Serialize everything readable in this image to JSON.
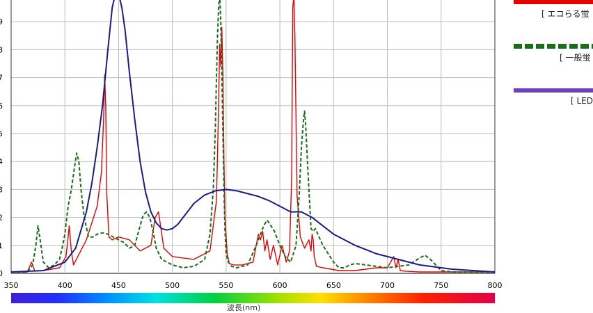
{
  "chart_data": {
    "type": "line",
    "xlabel": "波長(nm)",
    "xlim": [
      350,
      800
    ],
    "ylim": [
      0,
      1
    ],
    "x_ticks": [
      350,
      400,
      450,
      500,
      550,
      600,
      650,
      700,
      750,
      800
    ],
    "y_ticks": [
      {
        "v": 0,
        "label": "0"
      },
      {
        "v": 0.1,
        "label": "1"
      },
      {
        "v": 0.2,
        "label": "2"
      },
      {
        "v": 0.3,
        "label": "3"
      },
      {
        "v": 0.4,
        "label": "4"
      },
      {
        "v": 0.5,
        "label": "5"
      },
      {
        "v": 0.6,
        "label": "6"
      },
      {
        "v": 0.7,
        "label": "7"
      },
      {
        "v": 0.8,
        "label": "8"
      },
      {
        "v": 0.9,
        "label": "9"
      }
    ],
    "grid": true,
    "spectrum_bar": true,
    "series": [
      {
        "name": "[ エコらる蛍",
        "color": "#e60000",
        "style": "solid",
        "x": [
          350,
          365,
          369,
          372,
          380,
          395,
          401,
          403,
          404,
          406,
          408,
          420,
          430,
          434,
          436,
          437,
          438,
          439,
          441,
          444,
          450,
          460,
          470,
          480,
          484,
          487,
          489,
          492,
          500,
          510,
          520,
          535,
          541,
          543,
          544,
          545,
          546,
          547,
          548,
          549,
          551,
          553,
          557,
          565,
          575,
          580,
          582,
          584,
          586,
          588,
          591,
          594,
          598,
          602,
          606,
          609,
          611,
          612,
          613,
          614,
          616,
          619,
          623,
          627,
          629,
          630,
          631,
          632,
          634,
          640,
          655,
          670,
          690,
          700,
          706,
          708,
          710,
          712,
          716,
          730,
          760,
          800
        ],
        "y": [
          0.005,
          0.005,
          0.04,
          0.008,
          0.01,
          0.02,
          0.06,
          0.13,
          0.17,
          0.08,
          0.03,
          0.12,
          0.24,
          0.36,
          0.55,
          0.71,
          0.6,
          0.28,
          0.13,
          0.12,
          0.13,
          0.12,
          0.08,
          0.1,
          0.2,
          0.22,
          0.17,
          0.09,
          0.06,
          0.055,
          0.05,
          0.08,
          0.26,
          0.6,
          0.82,
          0.74,
          0.88,
          0.7,
          0.4,
          0.2,
          0.07,
          0.035,
          0.03,
          0.03,
          0.04,
          0.14,
          0.12,
          0.15,
          0.08,
          0.12,
          0.05,
          0.1,
          0.03,
          0.1,
          0.04,
          0.08,
          0.35,
          0.95,
          0.99,
          0.85,
          0.28,
          0.13,
          0.09,
          0.12,
          0.08,
          0.14,
          0.12,
          0.06,
          0.025,
          0.02,
          0.01,
          0.01,
          0.02,
          0.02,
          0.06,
          0.02,
          0.05,
          0.01,
          0.008,
          0.005,
          0.005,
          0.005
        ]
      },
      {
        "name": "[ 一般蛍",
        "color": "#1a6b1a",
        "style": "dashed",
        "x": [
          350,
          365,
          370,
          373,
          375,
          377,
          380,
          385,
          390,
          395,
          398,
          400,
          403,
          406,
          409,
          411,
          413,
          415,
          418,
          422,
          426,
          430,
          435,
          440,
          445,
          450,
          455,
          460,
          465,
          470,
          473,
          476,
          479,
          482,
          485,
          490,
          500,
          510,
          520,
          530,
          535,
          538,
          540,
          541,
          542,
          543,
          544,
          545,
          546,
          547,
          548,
          549,
          550,
          552,
          555,
          560,
          570,
          578,
          585,
          588,
          590,
          595,
          600,
          605,
          610,
          615,
          618,
          620,
          622,
          623,
          624,
          625,
          627,
          629,
          631,
          633,
          640,
          650,
          655,
          660,
          665,
          670,
          680,
          690,
          700,
          710,
          720,
          730,
          735,
          740,
          745,
          750,
          760,
          800
        ],
        "y": [
          0.005,
          0.005,
          0.03,
          0.1,
          0.17,
          0.12,
          0.04,
          0.02,
          0.03,
          0.05,
          0.1,
          0.14,
          0.24,
          0.3,
          0.38,
          0.43,
          0.4,
          0.3,
          0.2,
          0.13,
          0.13,
          0.14,
          0.145,
          0.14,
          0.13,
          0.12,
          0.11,
          0.09,
          0.1,
          0.17,
          0.21,
          0.22,
          0.2,
          0.15,
          0.09,
          0.05,
          0.03,
          0.02,
          0.025,
          0.05,
          0.14,
          0.3,
          0.52,
          0.7,
          0.85,
          0.95,
          1.0,
          0.9,
          0.72,
          0.5,
          0.3,
          0.15,
          0.07,
          0.04,
          0.025,
          0.02,
          0.03,
          0.1,
          0.17,
          0.19,
          0.18,
          0.15,
          0.1,
          0.06,
          0.04,
          0.1,
          0.28,
          0.45,
          0.55,
          0.58,
          0.53,
          0.45,
          0.3,
          0.16,
          0.15,
          0.16,
          0.1,
          0.04,
          0.02,
          0.02,
          0.03,
          0.035,
          0.03,
          0.025,
          0.02,
          0.025,
          0.03,
          0.055,
          0.065,
          0.05,
          0.03,
          0.01,
          0.005,
          0.005
        ]
      },
      {
        "name": "[ LED",
        "color": "#1a1a8c",
        "style": "solid",
        "x": [
          350,
          380,
          400,
          410,
          420,
          425,
          430,
          435,
          440,
          444,
          447,
          450,
          453,
          456,
          460,
          465,
          470,
          475,
          480,
          485,
          490,
          495,
          500,
          505,
          510,
          515,
          520,
          530,
          540,
          550,
          560,
          570,
          580,
          590,
          600,
          610,
          620,
          630,
          640,
          650,
          660,
          670,
          680,
          690,
          700,
          710,
          720,
          730,
          740,
          750,
          760,
          780,
          800
        ],
        "y": [
          0.005,
          0.01,
          0.04,
          0.09,
          0.22,
          0.32,
          0.45,
          0.6,
          0.8,
          0.95,
          1.0,
          1.0,
          0.95,
          0.87,
          0.72,
          0.55,
          0.4,
          0.29,
          0.22,
          0.18,
          0.16,
          0.155,
          0.16,
          0.175,
          0.2,
          0.225,
          0.25,
          0.28,
          0.295,
          0.3,
          0.295,
          0.285,
          0.275,
          0.26,
          0.24,
          0.22,
          0.22,
          0.2,
          0.17,
          0.14,
          0.12,
          0.1,
          0.085,
          0.07,
          0.06,
          0.05,
          0.04,
          0.03,
          0.025,
          0.02,
          0.015,
          0.01,
          0.005
        ]
      }
    ]
  }
}
